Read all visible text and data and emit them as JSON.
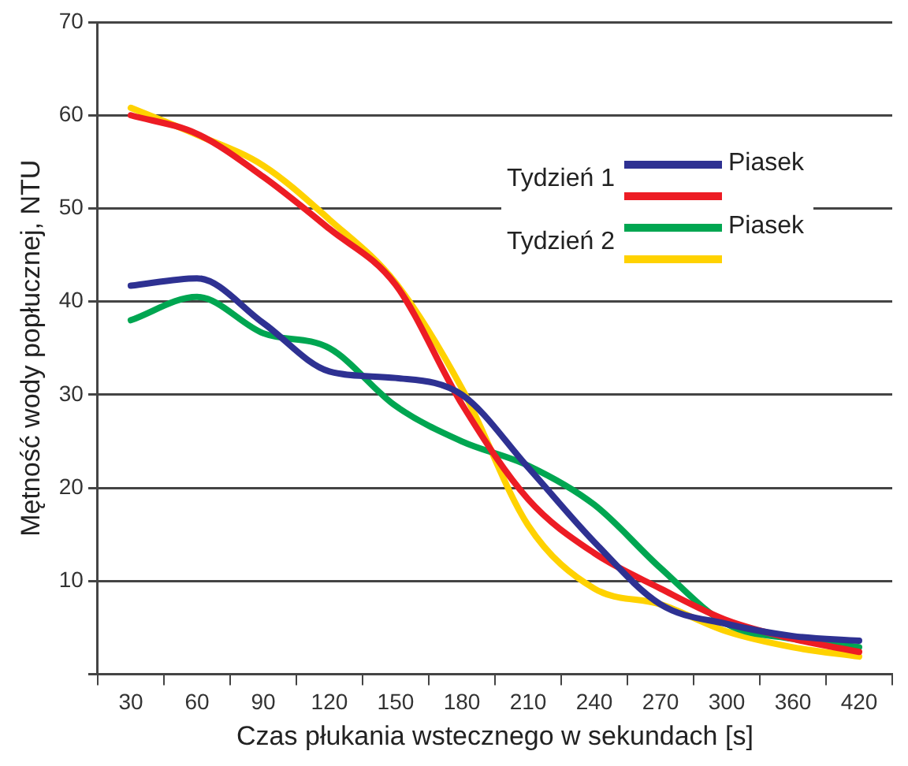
{
  "chart_data": {
    "type": "line",
    "xlabel": "Czas płukania wstecznego w sekundach [s]",
    "ylabel": "Mętność wody popłucznej, NTU",
    "categories": [
      "30",
      "60",
      "90",
      "120",
      "150",
      "180",
      "210",
      "240",
      "270",
      "300",
      "360",
      "420"
    ],
    "series": [
      {
        "name": "Piasek",
        "color": "#2e3192",
        "values": [
          41.7,
          42.5,
          37.7,
          32.5,
          31.8,
          30,
          22.2,
          14.2,
          7.5,
          5.4,
          4.1,
          3.6
        ]
      },
      {
        "color": "#ed1c24",
        "values": [
          60,
          58,
          53.4,
          47.8,
          41.8,
          29,
          18.8,
          13,
          9.2,
          5.8,
          3.8,
          2.4
        ]
      },
      {
        "name": "Piasek",
        "color": "#00a651",
        "values": [
          38,
          40.5,
          36.6,
          35,
          28.8,
          25,
          22.4,
          18.2,
          11.4,
          5.4,
          3.8,
          2.9
        ]
      },
      {
        "color": "#ffd200",
        "values": [
          60.8,
          57.9,
          54.6,
          48.8,
          42,
          30.7,
          16,
          9.2,
          7.5,
          4.6,
          2.9,
          1.9
        ]
      }
    ],
    "ylim": [
      0,
      70
    ],
    "yticks": [
      {
        "value": 0,
        "label": null
      },
      10,
      20,
      30,
      40,
      50,
      60,
      70
    ],
    "grid": "y",
    "legend": "top right",
    "line_style": "solid",
    "marker": "none",
    "annotations": [
      "Tydzień 1",
      "Tydzień 2"
    ]
  }
}
